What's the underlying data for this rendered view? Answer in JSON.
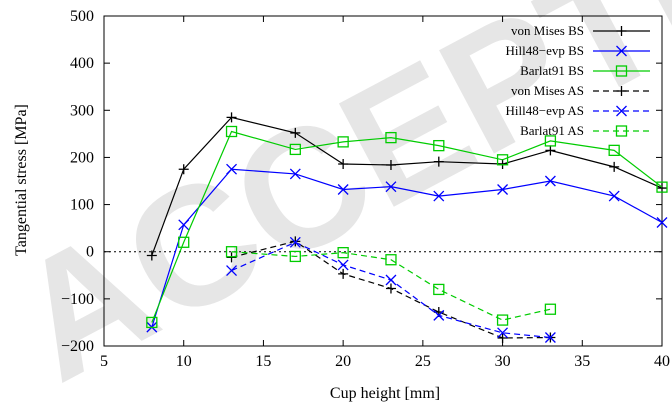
{
  "watermark": "ACCEPTED",
  "chart_data": {
    "type": "line",
    "xlabel": "Cup height [mm]",
    "ylabel": "Tangential stress [MPa]",
    "xlim": [
      5,
      40
    ],
    "ylim": [
      -200,
      500
    ],
    "xticks": [
      5,
      10,
      15,
      20,
      25,
      30,
      35,
      40
    ],
    "yticks": [
      -200,
      -100,
      0,
      100,
      200,
      300,
      400,
      500
    ],
    "zero_line": "dotted",
    "grid": false,
    "legend_position": "top-right",
    "series": [
      {
        "name": "von Mises BS",
        "color": "#000000",
        "dash": "solid",
        "marker": "plus",
        "x": [
          8,
          10,
          13,
          17,
          20,
          23,
          26,
          30,
          33,
          37,
          40
        ],
        "y": [
          -8,
          175,
          285,
          252,
          186,
          184,
          191,
          186,
          215,
          180,
          135
        ]
      },
      {
        "name": "Hill48−evp BS",
        "color": "#0000ff",
        "dash": "solid",
        "marker": "x",
        "x": [
          8,
          10,
          13,
          17,
          20,
          23,
          26,
          30,
          33,
          37,
          40
        ],
        "y": [
          -160,
          57,
          175,
          165,
          132,
          138,
          118,
          132,
          150,
          118,
          62
        ]
      },
      {
        "name": "Barlat91 BS",
        "color": "#00cc00",
        "dash": "solid",
        "marker": "square",
        "x": [
          8,
          10,
          13,
          17,
          20,
          23,
          26,
          30,
          33,
          37,
          40
        ],
        "y": [
          -150,
          20,
          255,
          217,
          233,
          242,
          225,
          195,
          235,
          215,
          137
        ]
      },
      {
        "name": "von Mises AS",
        "color": "#000000",
        "dash": "dashed",
        "marker": "plus",
        "x": [
          13,
          17,
          20,
          23,
          26,
          30,
          33
        ],
        "y": [
          -12,
          22,
          -47,
          -78,
          -128,
          -183,
          -182
        ]
      },
      {
        "name": "Hill48−evp AS",
        "color": "#0000ff",
        "dash": "dashed",
        "marker": "x",
        "x": [
          13,
          17,
          20,
          23,
          26,
          30,
          33
        ],
        "y": [
          -40,
          20,
          -28,
          -60,
          -135,
          -172,
          -182
        ]
      },
      {
        "name": "Barlat91 AS",
        "color": "#00cc00",
        "dash": "dashed",
        "marker": "square",
        "x": [
          13,
          17,
          20,
          23,
          26,
          30,
          33
        ],
        "y": [
          0,
          -10,
          -2,
          -17,
          -80,
          -145,
          -122
        ]
      }
    ]
  }
}
